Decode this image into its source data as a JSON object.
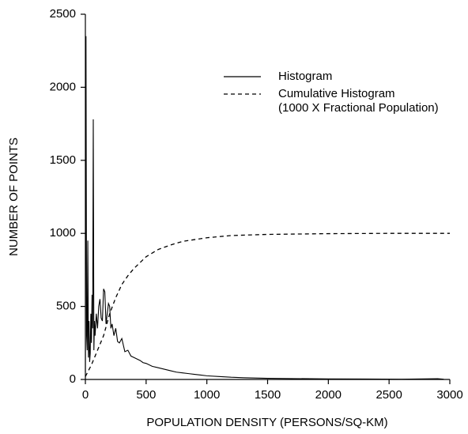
{
  "chart_data": {
    "type": "line",
    "x_label": "POPULATION DENSITY (PERSONS/SQ-KM)",
    "y_label": "NUMBER OF POINTS",
    "xlim": [
      0,
      3000
    ],
    "xticks": [
      0,
      500,
      1000,
      1500,
      2000,
      2500,
      3000
    ],
    "ylim": [
      0,
      2500
    ],
    "yticks": [
      0,
      500,
      1000,
      1500,
      2000,
      2500
    ],
    "series": [
      {
        "name": "Histogram",
        "color": "#000000",
        "dash": false,
        "x": [
          0,
          5,
          10,
          15,
          20,
          25,
          30,
          35,
          40,
          45,
          50,
          55,
          60,
          65,
          70,
          75,
          80,
          90,
          100,
          110,
          120,
          130,
          140,
          150,
          160,
          170,
          180,
          190,
          200,
          210,
          220,
          235,
          250,
          265,
          280,
          300,
          325,
          350,
          375,
          400,
          425,
          450,
          475,
          500,
          550,
          600,
          650,
          700,
          750,
          800,
          850,
          900,
          950,
          1000,
          1100,
          1200,
          1300,
          1400,
          1500,
          1700,
          2000,
          2300,
          2600,
          2900,
          2950
        ],
        "values": [
          50,
          2350,
          300,
          200,
          950,
          150,
          400,
          120,
          180,
          450,
          250,
          580,
          350,
          1780,
          200,
          400,
          300,
          450,
          350,
          500,
          550,
          420,
          400,
          620,
          600,
          380,
          450,
          520,
          500,
          350,
          380,
          300,
          350,
          260,
          250,
          280,
          190,
          200,
          160,
          150,
          140,
          130,
          115,
          110,
          90,
          80,
          70,
          60,
          50,
          45,
          40,
          35,
          30,
          25,
          20,
          15,
          12,
          10,
          8,
          6,
          4,
          3,
          2,
          5,
          2
        ]
      },
      {
        "name": "Cumulative Histogram",
        "note": "(1000 X Fractional Population)",
        "color": "#000000",
        "dash": true,
        "x": [
          0,
          50,
          100,
          150,
          200,
          250,
          300,
          350,
          400,
          500,
          600,
          700,
          800,
          1000,
          1200,
          1500,
          2000,
          2500,
          3000
        ],
        "values": [
          20,
          100,
          200,
          300,
          450,
          560,
          650,
          710,
          760,
          840,
          890,
          920,
          945,
          970,
          985,
          993,
          998,
          1000,
          1000
        ]
      }
    ]
  }
}
